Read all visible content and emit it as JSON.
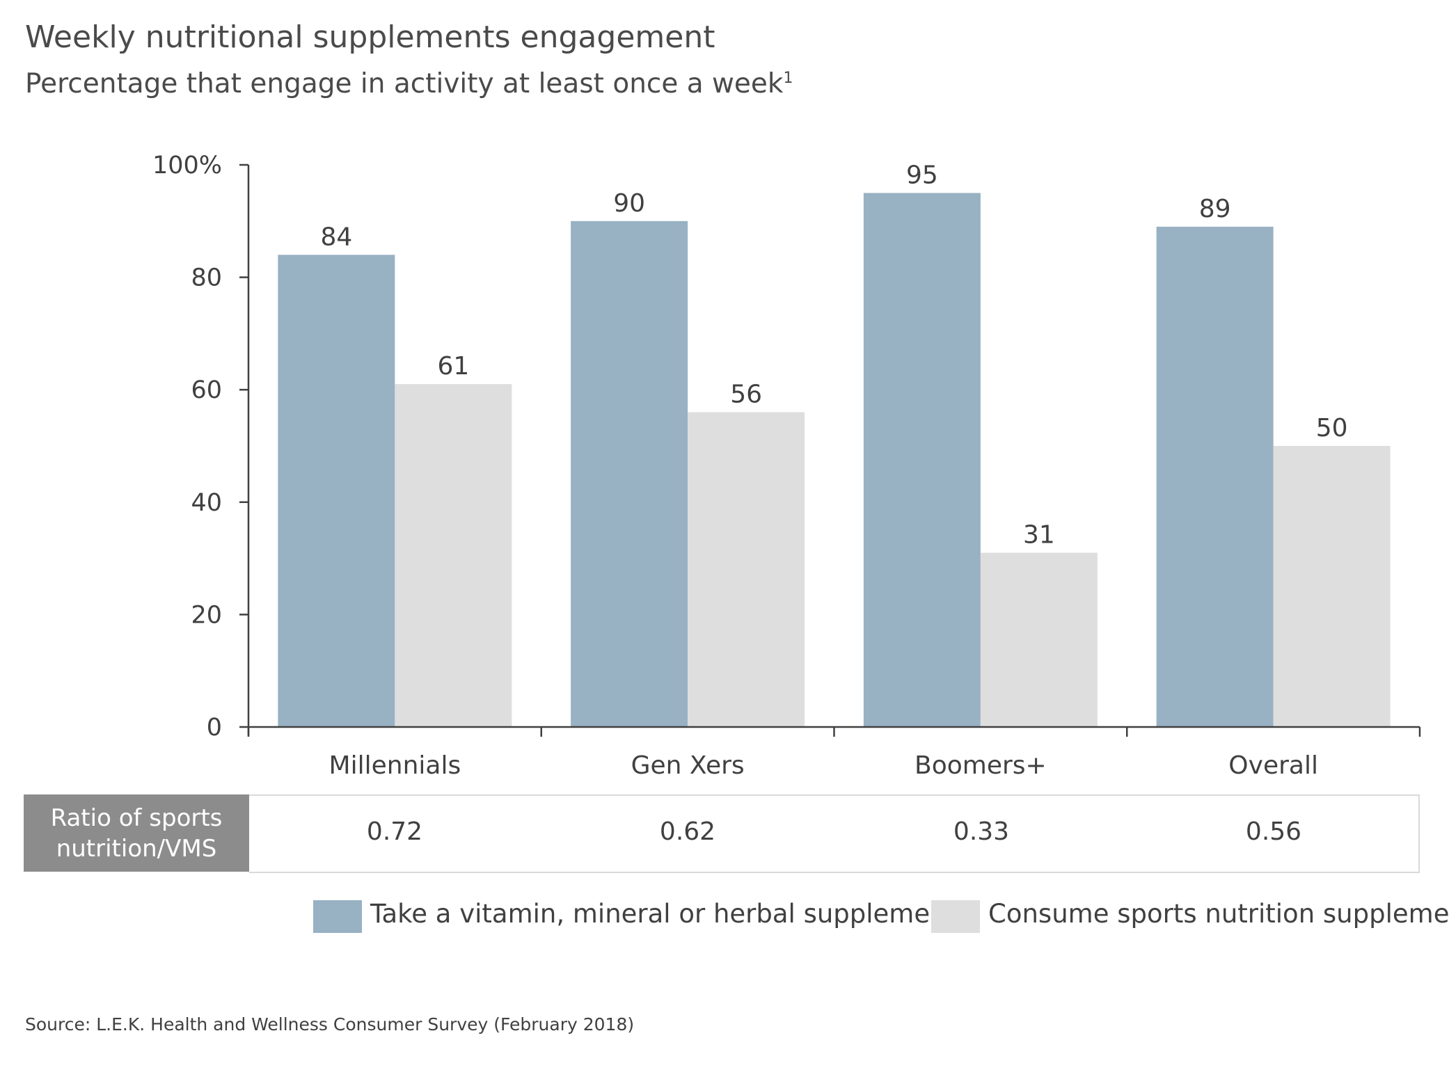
{
  "title": "Weekly nutritional supplements engagement",
  "subtitle": "Percentage that engage in activity at least once a week",
  "subtitle_footnote": "1",
  "colors": {
    "vms": "#98b1c3",
    "sports": "#dedede",
    "axis": "#404040",
    "ratio_header_bg": "#8c8c8c"
  },
  "chart_data": {
    "type": "bar",
    "categories": [
      "Millennials",
      "Gen Xers",
      "Boomers+",
      "Overall"
    ],
    "series": [
      {
        "name": "Take a vitamin, mineral or herbal supplement",
        "values": [
          84,
          90,
          95,
          89
        ],
        "labels": [
          "84",
          "90",
          "95",
          "89"
        ]
      },
      {
        "name": "Consume sports nutrition supplements",
        "values": [
          61,
          56,
          31,
          50
        ],
        "labels": [
          "61",
          "56",
          "31",
          "50"
        ]
      }
    ],
    "yticks": [
      "0",
      "20",
      "40",
      "60",
      "80",
      "100%"
    ],
    "ytick_values": [
      0,
      20,
      40,
      60,
      80,
      100
    ],
    "ylim": [
      0,
      100
    ],
    "grid": false,
    "legend_position": "bottom"
  },
  "ratio": {
    "header_line1": "Ratio of sports",
    "header_line2": "nutrition/VMS",
    "values": [
      "0.72",
      "0.62",
      "0.33",
      "0.56"
    ]
  },
  "source": "Source: L.E.K. Health and Wellness Consumer Survey (February 2018)"
}
